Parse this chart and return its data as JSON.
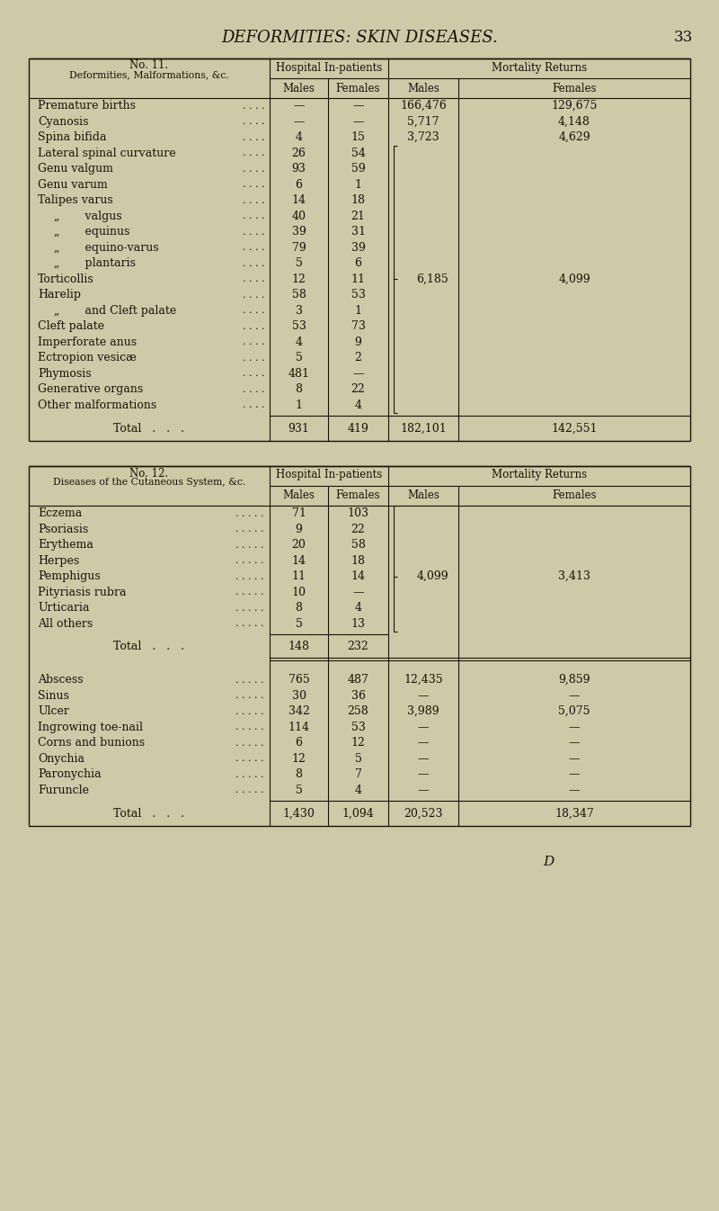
{
  "page_title": "DEFORMITIES: SKIN DISEASES.",
  "page_number": "33",
  "bg_color": "#cfc9a8",
  "text_color": "#1a1208",
  "table1": {
    "title_line1": "No. 11.",
    "title_line2": "Deformities, Malformations, &c.",
    "rows": [
      {
        "label": "Premature births",
        "indent": 0,
        "m": "—",
        "f": "—",
        "mm": "166,476",
        "ff": "129,675"
      },
      {
        "label": "Cyanosis",
        "indent": 0,
        "m": "—",
        "f": "—",
        "mm": "5,717",
        "ff": "4,148"
      },
      {
        "label": "Spina bifida",
        "indent": 0,
        "m": "4",
        "f": "15",
        "mm": "3,723",
        "ff": "4,629"
      },
      {
        "label": "Lateral spinal curvature",
        "indent": 0,
        "m": "26",
        "f": "54",
        "mm": "",
        "ff": "",
        "bstart": true
      },
      {
        "label": "Genu valgum",
        "indent": 0,
        "m": "93",
        "f": "59",
        "mm": "",
        "ff": ""
      },
      {
        "label": "Genu varum",
        "indent": 0,
        "m": "6",
        "f": "1",
        "mm": "",
        "ff": ""
      },
      {
        "label": "Talipes varus",
        "indent": 0,
        "m": "14",
        "f": "18",
        "mm": "",
        "ff": ""
      },
      {
        "label": "„       valgus",
        "indent": 1,
        "m": "40",
        "f": "21",
        "mm": "",
        "ff": ""
      },
      {
        "label": "„       equinus",
        "indent": 1,
        "m": "39",
        "f": "31",
        "mm": "",
        "ff": ""
      },
      {
        "label": "„       equino-varus",
        "indent": 1,
        "m": "79",
        "f": "39",
        "mm": "",
        "ff": ""
      },
      {
        "label": "„       plantaris",
        "indent": 1,
        "m": "5",
        "f": "6",
        "mm": "",
        "ff": ""
      },
      {
        "label": "Torticollis",
        "indent": 0,
        "m": "12",
        "f": "11",
        "mm": "6,185",
        "ff": "4,099",
        "bmid": true
      },
      {
        "label": "Harelip",
        "indent": 0,
        "m": "58",
        "f": "53",
        "mm": "",
        "ff": ""
      },
      {
        "label": "„       and Cleft palate",
        "indent": 1,
        "m": "3",
        "f": "1",
        "mm": "",
        "ff": ""
      },
      {
        "label": "Cleft palate",
        "indent": 0,
        "m": "53",
        "f": "73",
        "mm": "",
        "ff": ""
      },
      {
        "label": "Imperforate anus",
        "indent": 0,
        "m": "4",
        "f": "9",
        "mm": "",
        "ff": ""
      },
      {
        "label": "Ectropion vesicæ",
        "indent": 0,
        "m": "5",
        "f": "2",
        "mm": "",
        "ff": ""
      },
      {
        "label": "Phymosis",
        "indent": 0,
        "m": "481",
        "f": "—",
        "mm": "",
        "ff": ""
      },
      {
        "label": "Generative organs",
        "indent": 0,
        "m": "8",
        "f": "22",
        "mm": "",
        "ff": ""
      },
      {
        "label": "Other malformations",
        "indent": 0,
        "m": "1",
        "f": "4",
        "mm": "",
        "ff": "",
        "bend": true
      }
    ],
    "total": {
      "m": "931",
      "f": "419",
      "mm": "182,101",
      "ff": "142,551"
    }
  },
  "table2": {
    "title_line1": "No. 12.",
    "title_line2": "Diseases of the Cutaneous System, &c.",
    "rows_a": [
      {
        "label": "Eczema",
        "m": "71",
        "f": "103",
        "mm": "",
        "ff": "",
        "bstart": true
      },
      {
        "label": "Psoriasis",
        "m": "9",
        "f": "22",
        "mm": "",
        "ff": ""
      },
      {
        "label": "Erythema",
        "m": "20",
        "f": "58",
        "mm": "",
        "ff": ""
      },
      {
        "label": "Herpes",
        "m": "14",
        "f": "18",
        "mm": "",
        "ff": ""
      },
      {
        "label": "Pemphigus",
        "m": "11",
        "f": "14",
        "mm": "4,099",
        "ff": "3,413",
        "bmid": true
      },
      {
        "label": "Pityriasis rubra",
        "m": "10",
        "f": "—",
        "mm": "",
        "ff": ""
      },
      {
        "label": "Urticaria",
        "m": "8",
        "f": "4",
        "mm": "",
        "ff": ""
      },
      {
        "label": "All others",
        "m": "5",
        "f": "13",
        "mm": "",
        "ff": "",
        "bend": true
      }
    ],
    "total_a": {
      "m": "148",
      "f": "232"
    },
    "rows_b": [
      {
        "label": "Abscess",
        "m": "765",
        "f": "487",
        "mm": "12,435",
        "ff": "9,859"
      },
      {
        "label": "Sinus",
        "m": "30",
        "f": "36",
        "mm": "—",
        "ff": "—"
      },
      {
        "label": "Ulcer",
        "m": "342",
        "f": "258",
        "mm": "3,989",
        "ff": "5,075"
      },
      {
        "label": "Ingrowing toe-nail",
        "m": "114",
        "f": "53",
        "mm": "—",
        "ff": "—"
      },
      {
        "label": "Corns and bunions",
        "m": "6",
        "f": "12",
        "mm": "—",
        "ff": "—"
      },
      {
        "label": "Onychia",
        "m": "12",
        "f": "5",
        "mm": "—",
        "ff": "—"
      },
      {
        "label": "Paronychia",
        "m": "8",
        "f": "7",
        "mm": "—",
        "ff": "—"
      },
      {
        "label": "Furuncle",
        "m": "5",
        "f": "4",
        "mm": "—",
        "ff": "—"
      }
    ],
    "total_b": {
      "m": "1,430",
      "f": "1,094",
      "mm": "20,523",
      "ff": "18,347"
    }
  },
  "footer": "D"
}
